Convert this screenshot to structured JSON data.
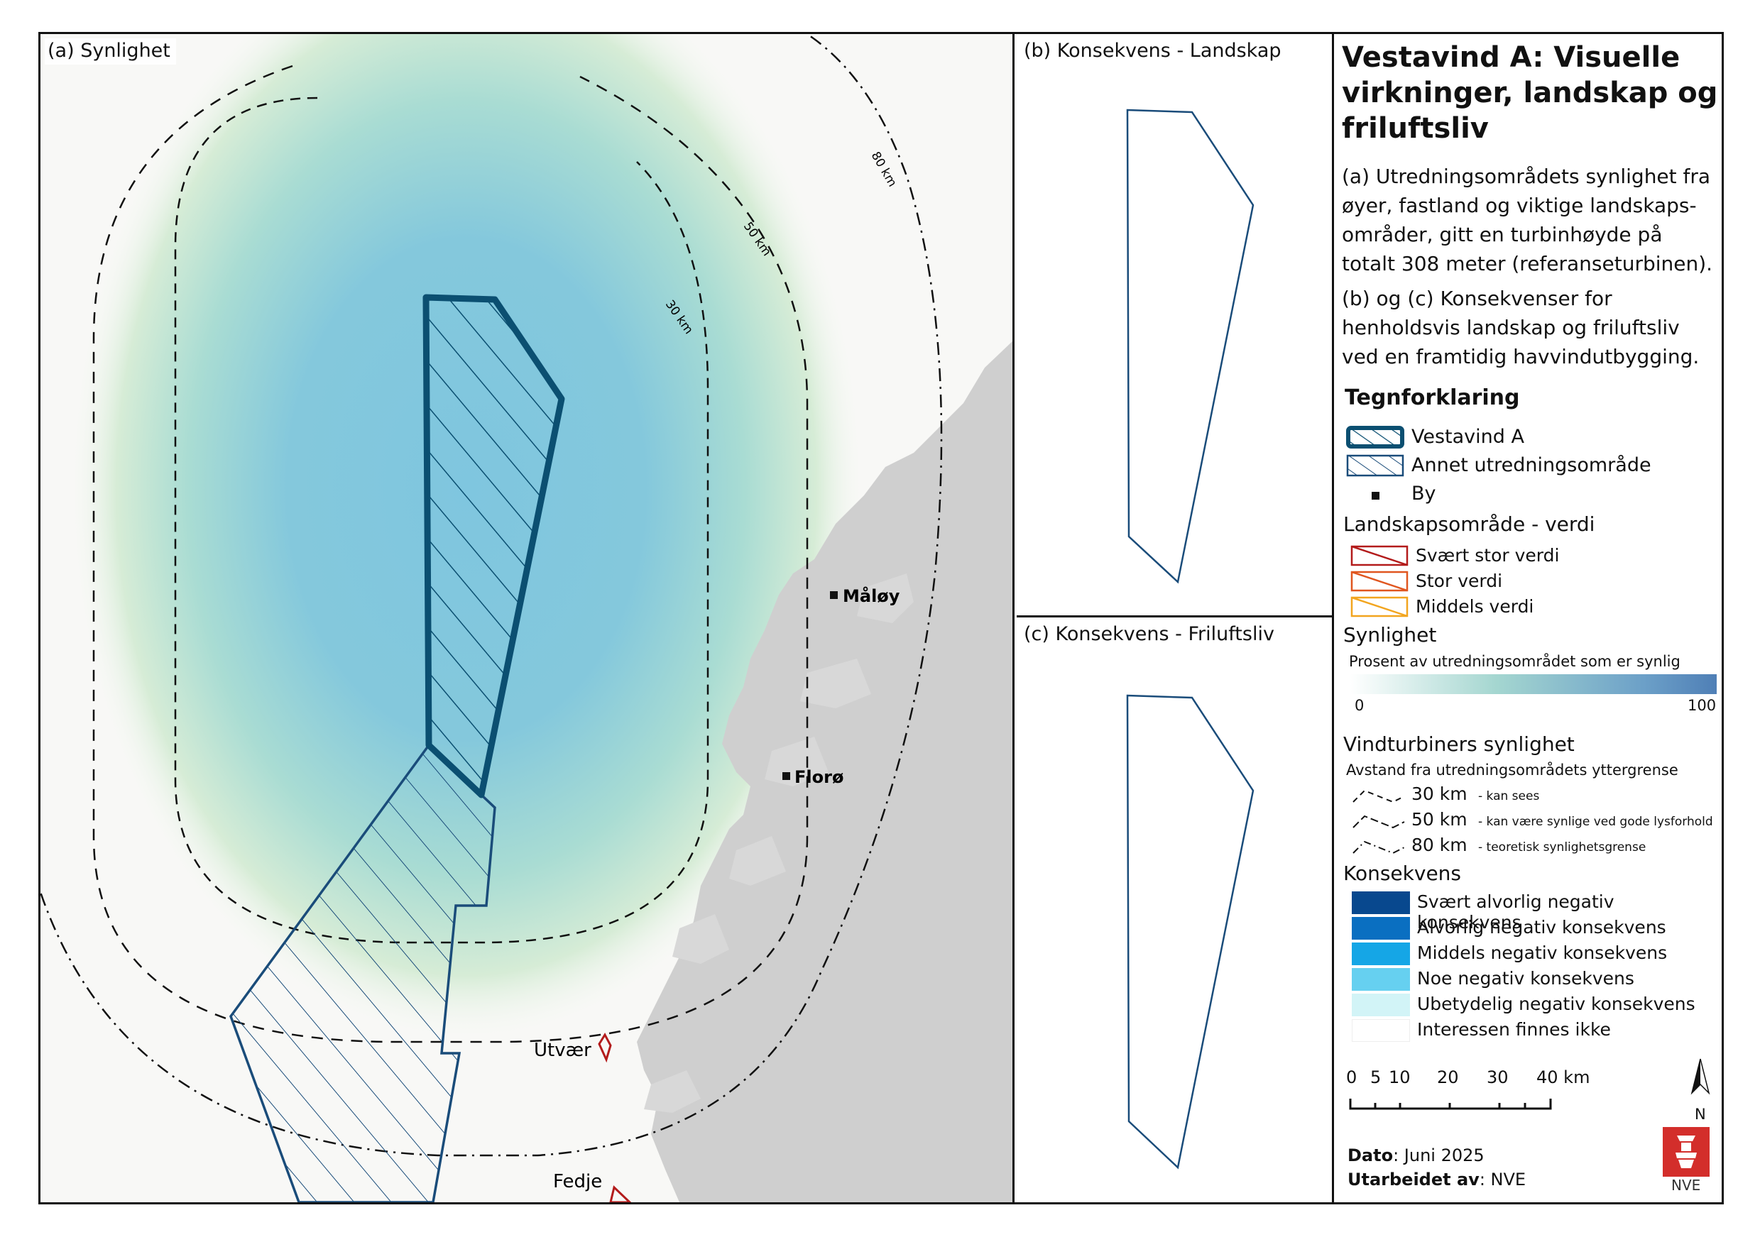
{
  "panels": {
    "a_label": "(a) Synlighet",
    "b_label": "(b) Konsekvens - Landskap",
    "c_label": "(c) Konsekvens - Friluftsliv"
  },
  "map_a": {
    "buffer_labels": {
      "km30": "30 km",
      "km50": "50 km",
      "km80": "80 km"
    },
    "towns": [
      "Måløy",
      "Florø"
    ],
    "landscape_areas": [
      "Utvær",
      "Fedje"
    ]
  },
  "legend": {
    "title": "Vestavind A: Visuelle virkninger, landskap og friluftsliv",
    "desc1": "(a) Utredningsområdets synlighet fra øyer, fastland og viktige landskaps-områder, gitt en turbinhøyde på totalt 308 meter (referanseturbinen).",
    "desc2": "(b) og (c) Konsekvenser for henholdsvis landskap og friluftsliv ved en framtidig havvindutbygging.",
    "tegnforklaring": "Tegnforklaring",
    "vestavind_a": "Vestavind A",
    "annet": "Annet utredningsområde",
    "by": "By",
    "landskap_head": "Landskapsområde - verdi",
    "landskap_items": [
      "Svært stor verdi",
      "Stor verdi",
      "Middels verdi"
    ],
    "synlighet_head": "Synlighet",
    "synlighet_sub": "Prosent av utredningsområdet som er synlig",
    "ramp_min": "0",
    "ramp_max": "100",
    "vind_head": "Vindturbiners synlighet",
    "vind_sub": "Avstand fra utredningsområdets yttergrense",
    "vind_items": [
      {
        "km": "30 km",
        "note": "- kan sees"
      },
      {
        "km": "50 km",
        "note": "- kan være synlige ved gode lysforhold"
      },
      {
        "km": "80 km",
        "note": "- teoretisk synlighetsgrense"
      }
    ],
    "konsekvens_head": "Konsekvens",
    "konsekvens_items": [
      "Svært alvorlig negativ konsekvens",
      "Alvorlig negativ konsekvens",
      "Middels negativ konsekvens",
      "Noe negativ konsekvens",
      "Ubetydelig negativ konsekvens",
      "Interessen finnes ikke"
    ],
    "scale_labels": [
      "0",
      "5",
      "10",
      "20",
      "30",
      "40 km"
    ],
    "north": "N",
    "dato_label": "Dato",
    "dato_value": ": Juni 2025",
    "utarbeidet_label": "Utarbeidet av",
    "utarbeidet_value": ": NVE",
    "logo_text": "NVE"
  },
  "colors": {
    "vestavind": "#0b4f71",
    "annet": "#1a4c7a",
    "svaert_stor": "#b31b1b",
    "stor": "#e0561f",
    "middels": "#f2a51f",
    "konsekvens": [
      "#08488e",
      "#0a6fc1",
      "#15a6e6",
      "#66d0f0",
      "#d2f4f7",
      "#ffffff"
    ],
    "nve_red": "#d32e2b"
  }
}
